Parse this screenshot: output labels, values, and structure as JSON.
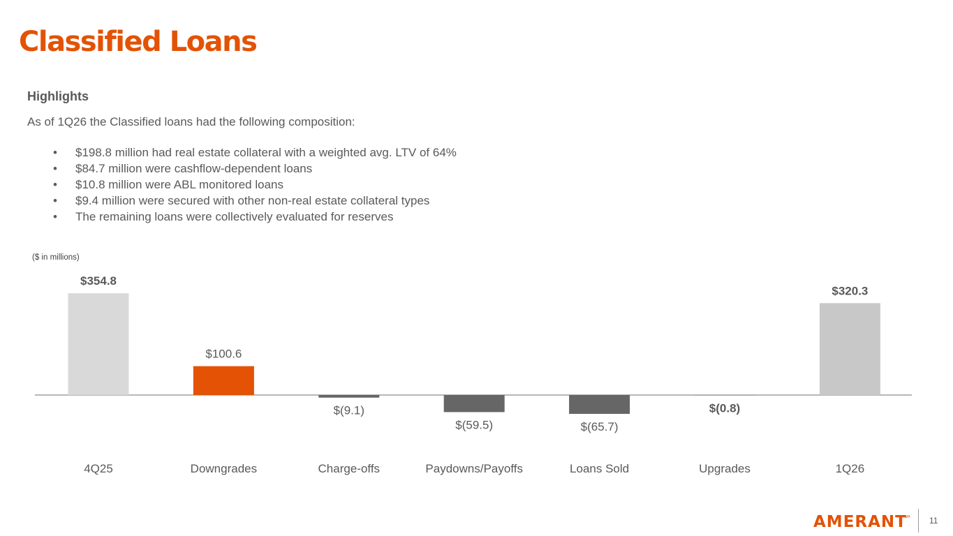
{
  "slide": {
    "title": "Classified Loans",
    "highlights_heading": "Highlights",
    "intro": "As of 1Q26 the Classified loans had the following composition:",
    "bullets": [
      "$198.8 million had real estate collateral with a weighted avg. LTV of 64%",
      "$84.7 million were cashflow-dependent loans",
      "$10.8 million were ABL monitored loans",
      "$9.4 million were secured with other non-real estate collateral types",
      "The remaining loans were collectively evaluated for reserves"
    ],
    "bullet_symbol": "•",
    "units_note": "($ in millions)",
    "page_number": "11",
    "logo": {
      "text": "AMERANT",
      "trademark": "SM",
      "color": "#e35205"
    }
  },
  "chart_data": {
    "type": "bar",
    "categories": [
      "4Q25",
      "Downgrades",
      "Charge-offs",
      "Paydowns/Payoffs",
      "Loans Sold",
      "Upgrades",
      "1Q26"
    ],
    "values": [
      354.8,
      100.6,
      -9.1,
      -59.5,
      -65.7,
      -0.8,
      320.3
    ],
    "data_labels": [
      "$354.8",
      "$100.6",
      "$(9.1)",
      "$(59.5)",
      "$(65.7)",
      "$(0.8)",
      "$320.3"
    ],
    "bold_labels": [
      true,
      false,
      false,
      false,
      false,
      true,
      true
    ],
    "colors": [
      "#d9d9d9",
      "#e35205",
      "#666666",
      "#666666",
      "#666666",
      "#666666",
      "#c8c8c8"
    ],
    "baseline": 0,
    "grid": false,
    "title": "",
    "xlabel": "",
    "ylabel": ""
  }
}
